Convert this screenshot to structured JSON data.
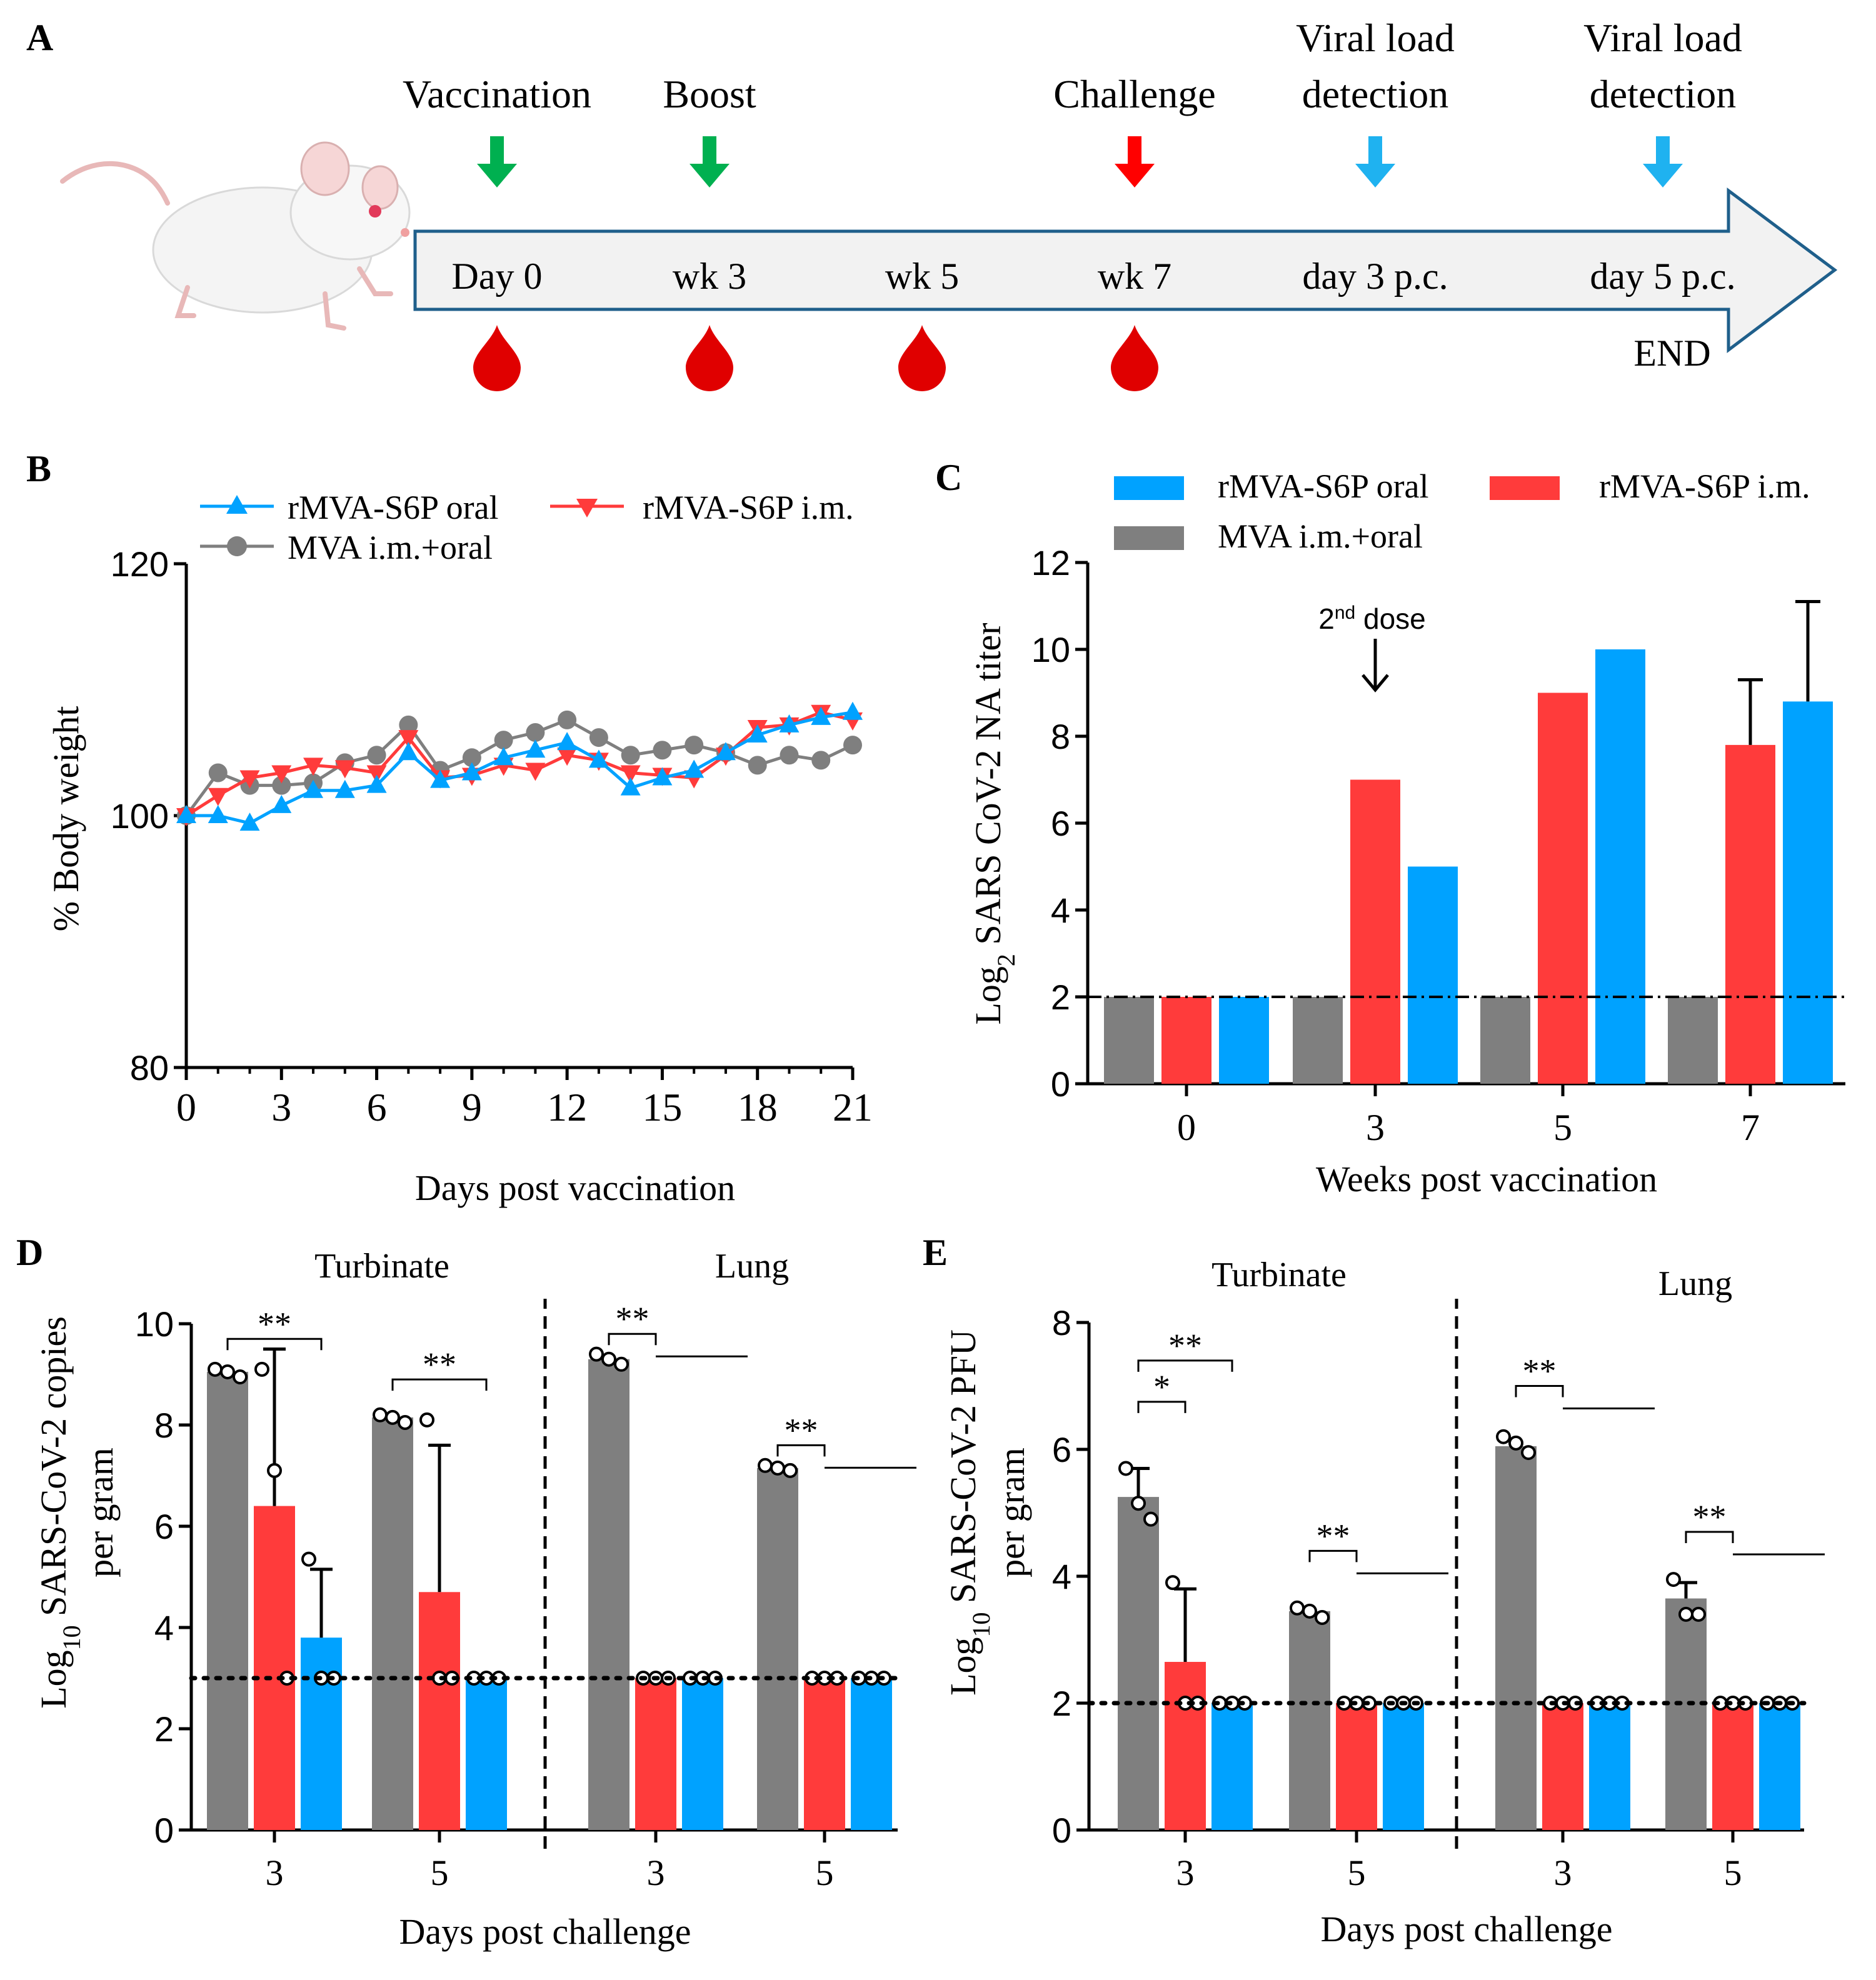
{
  "panel_labels": {
    "a": "A",
    "b": "B",
    "c": "C",
    "d": "D",
    "e": "E"
  },
  "colors": {
    "gray": "#7f7f7f",
    "red": "#ff3b3b",
    "blue": "#00a2ff",
    "green": "#00b050",
    "arrow_red": "#ff0000",
    "arrow_blue": "#1fb2f0",
    "blood": "#e00000",
    "timeline_stroke": "#1f5f8b",
    "timeline_fill": "#f2f2f2"
  },
  "timeline": {
    "top_labels": [
      {
        "line1": "Vaccination",
        "line2": "",
        "arrow": "green"
      },
      {
        "line1": "Boost",
        "line2": "",
        "arrow": "green"
      },
      {
        "line1": "Challenge",
        "line2": "",
        "arrow": "red"
      },
      {
        "line1": "Viral load",
        "line2": "detection",
        "arrow": "blue"
      },
      {
        "line1": "Viral load",
        "line2": "detection",
        "arrow": "blue"
      }
    ],
    "points": [
      "Day 0",
      "wk 3",
      "wk 5",
      "wk 7",
      "day 3 p.c.",
      "day 5 p.c."
    ],
    "blood_draws": [
      "Day 0",
      "wk 3",
      "wk 5",
      "wk 7"
    ],
    "end_label": "END"
  },
  "chart_data": [
    {
      "panel": "B",
      "type": "line",
      "xlabel": "Days post vaccination",
      "ylabel": "% Body weight",
      "xlim": [
        0,
        21
      ],
      "ylim": [
        80,
        120
      ],
      "xticks": [
        0,
        3,
        6,
        9,
        12,
        15,
        18,
        21
      ],
      "yticks": [
        80,
        100,
        120
      ],
      "x": [
        0,
        1,
        2,
        3,
        4,
        5,
        6,
        7,
        8,
        9,
        10,
        11,
        12,
        13,
        14,
        15,
        16,
        17,
        18,
        19,
        20,
        21
      ],
      "legend": [
        "rMVA-S6P oral",
        "rMVA-S6P i.m.",
        "MVA i.m.+oral"
      ],
      "series": [
        {
          "name": "rMVA-S6P oral",
          "color": "blue",
          "marker": "triangle-up",
          "values": [
            100,
            100,
            99.4,
            100.8,
            102,
            102,
            102.4,
            105,
            102.8,
            103.4,
            104.6,
            105.2,
            105.8,
            104.4,
            102.2,
            103,
            103.6,
            105,
            106.4,
            107.2,
            107.8,
            108.2
          ]
        },
        {
          "name": "rMVA-S6P i.m.",
          "color": "red",
          "marker": "triangle-down",
          "values": [
            100,
            101.6,
            103,
            103.4,
            104,
            103.8,
            103.4,
            106.2,
            103,
            103.2,
            104,
            103.6,
            104.8,
            104.4,
            103.4,
            103.2,
            103,
            104.8,
            107,
            107.2,
            108.2,
            107.6
          ]
        },
        {
          "name": "MVA i.m.+oral",
          "color": "gray",
          "marker": "circle",
          "values": [
            100,
            103.4,
            102.4,
            102.4,
            102.6,
            104.2,
            104.8,
            107.2,
            103.6,
            104.6,
            106,
            106.6,
            107.6,
            106.2,
            104.8,
            105.2,
            105.6,
            105,
            104,
            104.8,
            104.4,
            105.6
          ]
        }
      ]
    },
    {
      "panel": "C",
      "type": "bar",
      "xlabel": "Weeks post vaccination",
      "ylabel_main": "Log",
      "ylabel_sub": "2",
      "ylabel_rest": " SARS CoV-2 NA titer",
      "categories": [
        "0",
        "3",
        "5",
        "7"
      ],
      "ylim": [
        0,
        12
      ],
      "yticks": [
        0,
        2,
        4,
        6,
        8,
        10,
        12
      ],
      "threshold": 2,
      "legend": [
        "rMVA-S6P oral",
        "rMVA-S6P i.m.",
        "MVA i.m.+oral"
      ],
      "annotation": {
        "text_sup": "nd",
        "text_pre": "2",
        "text_post": " dose",
        "category": "3"
      },
      "series": [
        {
          "name": "MVA i.m.+oral",
          "color": "gray",
          "values": [
            2,
            2,
            2,
            2
          ],
          "errors": [
            0,
            0,
            0,
            0
          ]
        },
        {
          "name": "rMVA-S6P i.m.",
          "color": "red",
          "values": [
            2,
            7,
            9,
            7.8
          ],
          "errors": [
            0,
            0,
            0,
            1.5
          ]
        },
        {
          "name": "rMVA-S6P oral",
          "color": "blue",
          "values": [
            2,
            5,
            10,
            8.8
          ],
          "errors": [
            0,
            0,
            0,
            2.3
          ]
        }
      ]
    },
    {
      "panel": "D",
      "type": "bar",
      "xlabel": "Days post challenge",
      "ylabel_main": "Log",
      "ylabel_sub": "10",
      "ylabel_rest": " SARS-CoV-2 copies",
      "ylabel_line2": "per gram",
      "ylim": [
        0,
        10
      ],
      "yticks": [
        0,
        2,
        4,
        6,
        8,
        10
      ],
      "threshold": 3,
      "sections": [
        "Turbinate",
        "Lung"
      ],
      "categories": [
        "3",
        "5",
        "3",
        "5"
      ],
      "series": [
        {
          "name": "MVA i.m.+oral",
          "color": "gray",
          "values": [
            9.05,
            8.15,
            9.3,
            7.15
          ],
          "errors": [
            0,
            0,
            0,
            0
          ],
          "points": [
            [
              9.1,
              9.05,
              8.95
            ],
            [
              8.2,
              8.15,
              8.05
            ],
            [
              9.4,
              9.3,
              9.2
            ],
            [
              7.2,
              7.15,
              7.1
            ]
          ]
        },
        {
          "name": "rMVA-S6P i.m.",
          "color": "red",
          "values": [
            6.4,
            4.7,
            3,
            3
          ],
          "errors": [
            3.1,
            2.9,
            0,
            0
          ],
          "points": [
            [
              9.1,
              7.1,
              3
            ],
            [
              8.1,
              3,
              3
            ],
            [
              3,
              3,
              3
            ],
            [
              3,
              3,
              3
            ]
          ]
        },
        {
          "name": "rMVA-S6P oral",
          "color": "blue",
          "values": [
            3.8,
            3,
            3,
            3
          ],
          "errors": [
            1.35,
            0,
            0,
            0
          ],
          "points": [
            [
              5.35,
              3,
              3
            ],
            [
              3,
              3,
              3
            ],
            [
              3,
              3,
              3
            ],
            [
              3,
              3,
              3
            ]
          ]
        }
      ],
      "significance": [
        {
          "label": "**",
          "category": 0,
          "from": 0,
          "to": 2,
          "y": 9.7
        },
        {
          "label": "**",
          "category": 1,
          "from": 0,
          "to": 2,
          "y": 8.9
        },
        {
          "label": "**",
          "category": 2,
          "from": 0,
          "to": 1,
          "y": 9.8
        },
        {
          "label": "**",
          "category": 3,
          "from": 0,
          "to": 1,
          "y": 7.6
        }
      ]
    },
    {
      "panel": "E",
      "type": "bar",
      "xlabel": "Days post challenge",
      "ylabel_main": "Log",
      "ylabel_sub": "10",
      "ylabel_rest": " SARS-CoV-2 PFU",
      "ylabel_line2": "per gram",
      "ylim": [
        0,
        8
      ],
      "yticks": [
        0,
        2,
        4,
        6,
        8
      ],
      "threshold": 2,
      "sections": [
        "Turbinate",
        "Lung"
      ],
      "categories": [
        "3",
        "5",
        "3",
        "5"
      ],
      "series": [
        {
          "name": "MVA i.m.+oral",
          "color": "gray",
          "values": [
            5.25,
            3.45,
            6.05,
            3.65
          ],
          "errors": [
            0.45,
            0,
            0,
            0.25
          ],
          "points": [
            [
              5.7,
              5.15,
              4.9
            ],
            [
              3.5,
              3.45,
              3.35
            ],
            [
              6.2,
              6.1,
              5.95
            ],
            [
              3.95,
              3.4,
              3.4
            ]
          ]
        },
        {
          "name": "rMVA-S6P i.m.",
          "color": "red",
          "values": [
            2.65,
            2,
            2,
            2
          ],
          "errors": [
            1.15,
            0,
            0,
            0
          ],
          "points": [
            [
              3.9,
              2,
              2
            ],
            [
              2,
              2,
              2
            ],
            [
              2,
              2,
              2
            ],
            [
              2,
              2,
              2
            ]
          ]
        },
        {
          "name": "rMVA-S6P oral",
          "color": "blue",
          "values": [
            2,
            2,
            2,
            2
          ],
          "errors": [
            0,
            0,
            0,
            0
          ],
          "points": [
            [
              2,
              2,
              2
            ],
            [
              2,
              2,
              2
            ],
            [
              2,
              2,
              2
            ],
            [
              2,
              2,
              2
            ]
          ]
        }
      ],
      "significance": [
        {
          "label": "**",
          "category": 0,
          "from": 0,
          "to": 2,
          "y": 7.4
        },
        {
          "label": "*",
          "category": 0,
          "from": 0,
          "to": 1,
          "y": 6.75
        },
        {
          "label": "**",
          "category": 1,
          "from": 0,
          "to": 1,
          "y": 4.4
        },
        {
          "label": "**",
          "category": 2,
          "from": 0,
          "to": 1,
          "y": 7.0
        },
        {
          "label": "**",
          "category": 3,
          "from": 0,
          "to": 1,
          "y": 4.7
        }
      ]
    }
  ]
}
